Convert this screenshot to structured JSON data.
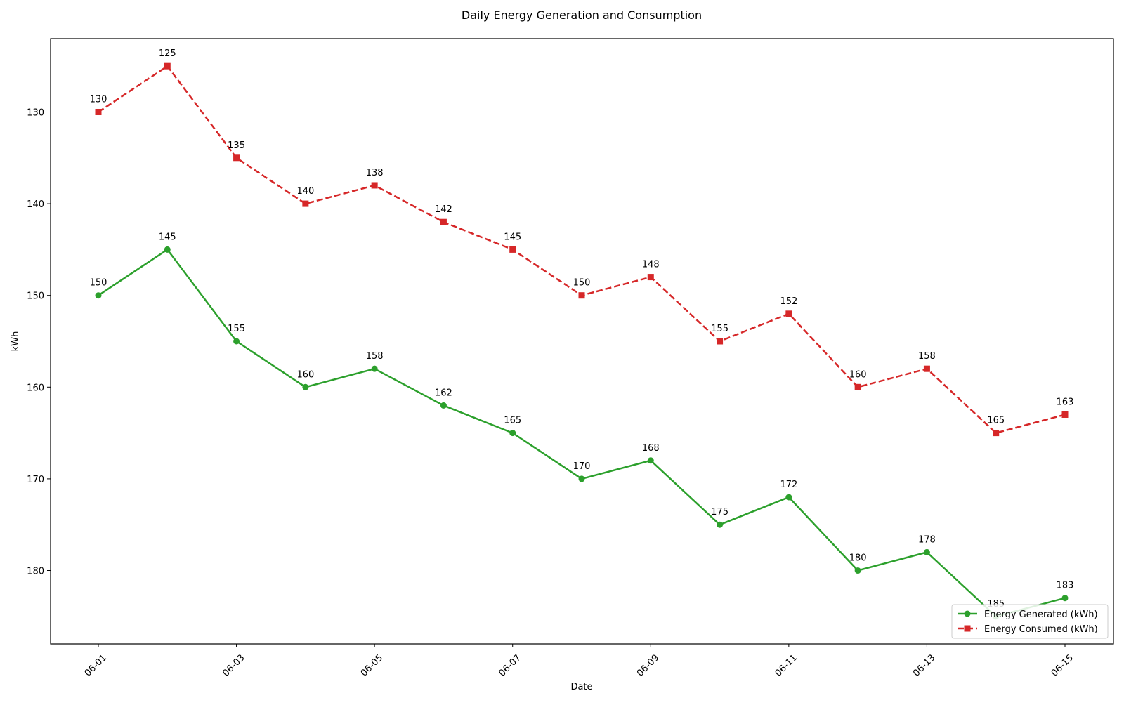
{
  "chart_data": {
    "type": "line",
    "title": "Daily Energy Generation and Consumption",
    "xlabel": "Date",
    "ylabel": "kWh",
    "x": [
      "06-01",
      "06-02",
      "06-03",
      "06-04",
      "06-05",
      "06-06",
      "06-07",
      "06-08",
      "06-09",
      "06-10",
      "06-11",
      "06-12",
      "06-13",
      "06-14",
      "06-15"
    ],
    "x_ticks": [
      "06-01",
      "06-03",
      "06-05",
      "06-07",
      "06-09",
      "06-11",
      "06-13",
      "06-15"
    ],
    "y_ticks": [
      130,
      140,
      150,
      160,
      170,
      180
    ],
    "ylim": [
      122,
      188
    ],
    "y_inverted": true,
    "grid": false,
    "legend_position": "lower-right",
    "series": [
      {
        "name": "Energy Generated (kWh)",
        "color": "#2ca02c",
        "line_style": "solid",
        "marker": "circle",
        "values": [
          150,
          145,
          155,
          160,
          158,
          162,
          165,
          170,
          168,
          175,
          172,
          180,
          178,
          185,
          183
        ]
      },
      {
        "name": "Energy Consumed (kWh)",
        "color": "#d62728",
        "line_style": "dashed",
        "marker": "square",
        "values": [
          130,
          125,
          135,
          140,
          138,
          142,
          145,
          150,
          148,
          155,
          152,
          160,
          158,
          165,
          163
        ]
      }
    ]
  }
}
